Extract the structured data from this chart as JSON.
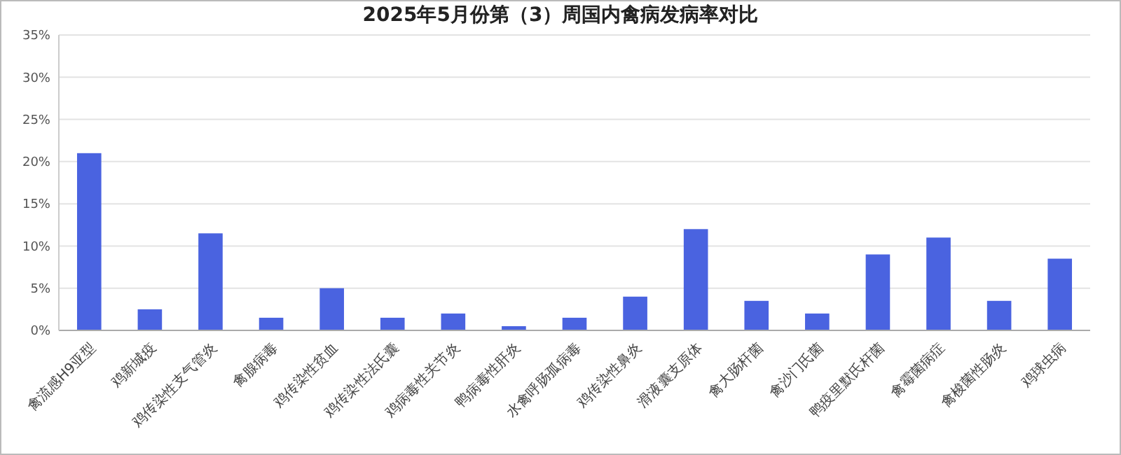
{
  "chart_data": {
    "type": "bar",
    "title": "2025年5月份第（3）周国内禽病发病率对比",
    "categories": [
      "禽流感H9亚型",
      "鸡新城疫",
      "鸡传染性支气管炎",
      "禽腺病毒",
      "鸡传染性贫血",
      "鸡传染性法氏囊",
      "鸡病毒性关节炎",
      "鸭病毒性肝炎",
      "水禽呼肠孤病毒",
      "鸡传染性鼻炎",
      "滑液囊支原体",
      "禽大肠杆菌",
      "禽沙门氏菌",
      "鸭疫里默氏杆菌",
      "禽霉菌病症",
      "禽梭菌性肠炎",
      "鸡球虫病"
    ],
    "values": [
      21,
      2.5,
      11.5,
      1.5,
      5,
      1.5,
      2,
      0.5,
      1.5,
      4,
      12,
      3.5,
      2,
      9,
      11,
      3.5,
      8.5
    ],
    "color": "#4a63e0",
    "ylim": [
      0,
      35
    ],
    "yticks": [
      {
        "value": 0,
        "label": "0%"
      },
      {
        "value": 5,
        "label": "5%"
      },
      {
        "value": 10,
        "label": "10%"
      },
      {
        "value": 15,
        "label": "15%"
      },
      {
        "value": 20,
        "label": "20%"
      },
      {
        "value": 25,
        "label": "25%"
      },
      {
        "value": 30,
        "label": "30%"
      },
      {
        "value": 35,
        "label": "35%"
      }
    ],
    "grid": "y"
  }
}
